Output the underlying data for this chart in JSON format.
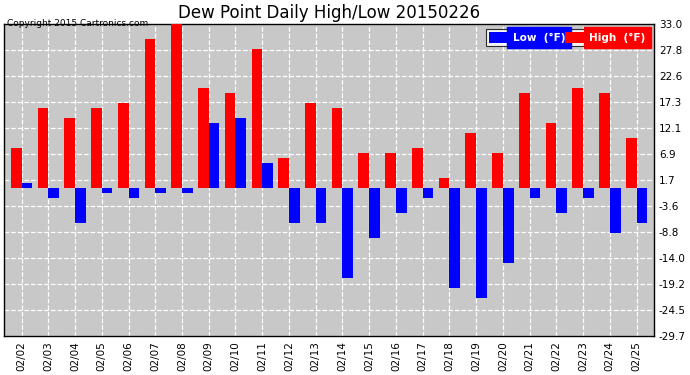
{
  "title": "Dew Point Daily High/Low 20150226",
  "copyright": "Copyright 2015 Cartronics.com",
  "dates": [
    "02/02",
    "02/03",
    "02/04",
    "02/05",
    "02/06",
    "02/07",
    "02/08",
    "02/09",
    "02/10",
    "02/11",
    "02/12",
    "02/13",
    "02/14",
    "02/15",
    "02/16",
    "02/17",
    "02/18",
    "02/19",
    "02/20",
    "02/21",
    "02/22",
    "02/23",
    "02/24",
    "02/25"
  ],
  "high": [
    8.0,
    16.0,
    14.0,
    16.0,
    17.0,
    30.0,
    33.0,
    20.0,
    19.0,
    28.0,
    6.0,
    17.0,
    16.0,
    7.0,
    7.0,
    8.0,
    2.0,
    11.0,
    7.0,
    19.0,
    13.0,
    20.0,
    19.0,
    10.0
  ],
  "low": [
    1.0,
    -2.0,
    -7.0,
    -1.0,
    -2.0,
    -1.0,
    -1.0,
    13.0,
    14.0,
    5.0,
    -7.0,
    -7.0,
    -18.0,
    -10.0,
    -5.0,
    -2.0,
    -20.0,
    -22.0,
    -15.0,
    -2.0,
    -5.0,
    -2.0,
    -9.0,
    -7.0
  ],
  "ylim": [
    -29.7,
    33.0
  ],
  "yticks": [
    33.0,
    27.8,
    22.6,
    17.3,
    12.1,
    6.9,
    1.7,
    -3.6,
    -8.8,
    -14.0,
    -19.2,
    -24.5,
    -29.7
  ],
  "high_color": "#ff0000",
  "low_color": "#0000ff",
  "plot_bg_color": "#c8c8c8",
  "fig_bg_color": "#ffffff",
  "grid_color": "#ffffff",
  "title_fontsize": 12,
  "tick_fontsize": 7.5,
  "bar_width": 0.4,
  "legend_low_label": "Low  (°F)",
  "legend_high_label": "High  (°F)"
}
